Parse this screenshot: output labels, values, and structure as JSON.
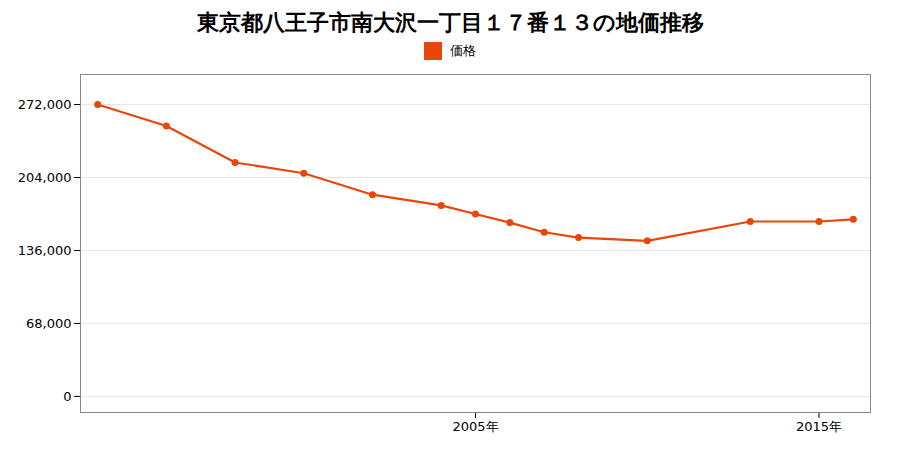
{
  "chart_data": {
    "type": "line",
    "title": "東京都八王子市南大沢一丁目１７番１３の地価推移",
    "x": [
      1994,
      1996,
      1998,
      2000,
      2002,
      2004,
      2005,
      2006,
      2007,
      2008,
      2010,
      2013,
      2015,
      2016
    ],
    "series": [
      {
        "name": "価格",
        "color": "#E8460A",
        "marker": "o",
        "values": [
          272000,
          252000,
          218000,
          208000,
          188000,
          178000,
          170000,
          162000,
          153000,
          148000,
          145000,
          163000,
          163000,
          165000
        ]
      }
    ],
    "xlim": [
      1993.5,
      2016.5
    ],
    "xticks": [
      {
        "value": 2005,
        "label": "2005年"
      },
      {
        "value": 2015,
        "label": "2015年"
      }
    ],
    "ylim": [
      -15000,
      300000
    ],
    "yticks": [
      0,
      {
        "value": 68000,
        "label": "68,000"
      },
      {
        "value": 136000,
        "label": "136,000"
      },
      {
        "value": 204000,
        "label": "204,000"
      },
      {
        "value": 272000,
        "label": "272,000"
      }
    ],
    "grid": true,
    "legend": "top"
  }
}
